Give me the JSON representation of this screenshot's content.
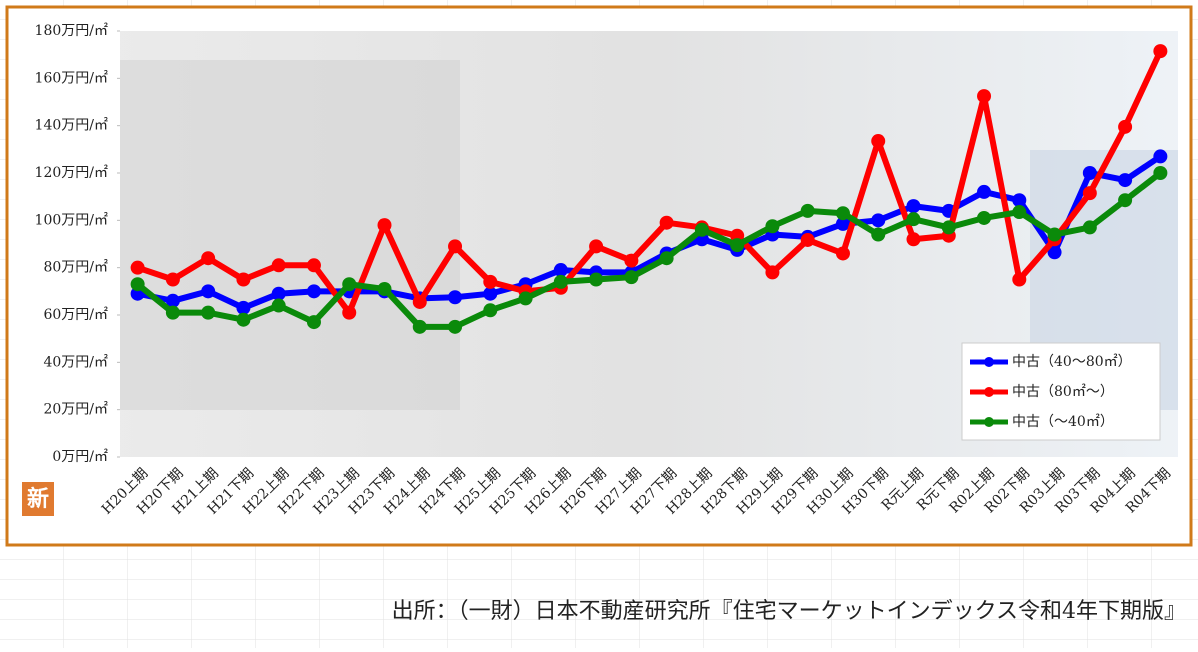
{
  "chart_data": {
    "type": "line",
    "categories": [
      "H20上期",
      "H20下期",
      "H21上期",
      "H21下期",
      "H22上期",
      "H22下期",
      "H23上期",
      "H23下期",
      "H24上期",
      "H24下期",
      "H25上期",
      "H25下期",
      "H26上期",
      "H26下期",
      "H27上期",
      "H27下期",
      "H28上期",
      "H28下期",
      "H29上期",
      "H29下期",
      "H30上期",
      "H30下期",
      "R元上期",
      "R元下期",
      "R02上期",
      "R02下期",
      "R03上期",
      "R03下期",
      "R04上期",
      "R04下期"
    ],
    "series": [
      {
        "name": "中古（40～80㎡）",
        "color": "#0000ff",
        "values": [
          69,
          66,
          70,
          63,
          69,
          70,
          70,
          70,
          67,
          67.5,
          69,
          73,
          79,
          78,
          78,
          86,
          92,
          87.5,
          94,
          93,
          98.5,
          100,
          106,
          104,
          112,
          108.5,
          86.5,
          120,
          117,
          127
        ]
      },
      {
        "name": "中古（80㎡～）",
        "color": "#ff0000",
        "values": [
          80,
          75,
          84,
          75,
          81,
          81,
          61,
          98,
          65.5,
          89,
          74,
          70,
          71.5,
          89,
          83,
          99,
          97,
          93.5,
          78,
          91.7,
          86,
          133.5,
          92,
          93.5,
          152.5,
          75,
          92,
          111.5,
          139.5,
          171.5
        ]
      },
      {
        "name": "中古（～40㎡）",
        "color": "#0a8a0a",
        "values": [
          73,
          61,
          61,
          58,
          64,
          57,
          73,
          71,
          55,
          55,
          62,
          67,
          74,
          75,
          76,
          84,
          96,
          89.5,
          97.5,
          104,
          103,
          94,
          100.5,
          97,
          101,
          103.5,
          94,
          97,
          108.5,
          120
        ]
      }
    ],
    "ylim": [
      0,
      180
    ],
    "yticks": [
      {
        "value": 0,
        "label": "0万円/㎡"
      },
      {
        "value": 20,
        "label": "20万円/㎡"
      },
      {
        "value": 40,
        "label": "40万円/㎡"
      },
      {
        "value": 60,
        "label": "60万円/㎡"
      },
      {
        "value": 80,
        "label": "80万円/㎡"
      },
      {
        "value": 100,
        "label": "100万円/㎡"
      },
      {
        "value": 120,
        "label": "120万円/㎡"
      },
      {
        "value": 140,
        "label": "140万円/㎡"
      },
      {
        "value": 160,
        "label": "160万円/㎡"
      },
      {
        "value": 180,
        "label": "180万円/㎡"
      }
    ],
    "legend": "lower right"
  },
  "badge": "新",
  "source": "出所：（一財）日本不動産研究所『住宅マーケットインデックス令和4年下期版』"
}
